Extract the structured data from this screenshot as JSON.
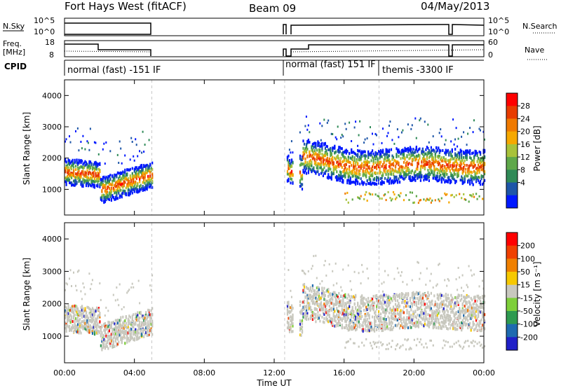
{
  "header": {
    "radar": "Fort Hays West (fitACF)",
    "beam": "Beam 09",
    "date": "04/May/2013"
  },
  "summary": {
    "nsky_label": "N.Sky",
    "nsky_ticks": [
      "10^5",
      "10^0"
    ],
    "nsearch_label": "N.Search",
    "nsearch_ticks": [
      "10^5",
      "10^0"
    ],
    "freq_label_1": "Freq.",
    "freq_label_2": "[MHz]",
    "freq_ticks": [
      "18",
      "8"
    ],
    "nave_label": "Nave",
    "nave_ticks": [
      "60",
      "0"
    ],
    "cpid_label": "CPID",
    "cpid_modes": [
      "normal (fast) -151 IF",
      "normal (fast) 151 IF",
      "themis -3300 IF"
    ]
  },
  "chart_data": [
    {
      "type": "heatmap",
      "name": "power",
      "ylabel": "Slant Range [km]",
      "xlabel": "Time UT",
      "y_ticks": [
        "4000",
        "3000",
        "2000",
        "1000"
      ],
      "colorbar_label": "Power [dB]",
      "colorbar_ticks": [
        "28",
        "24",
        "20",
        "16",
        "12",
        "8",
        "4"
      ],
      "colorbar_colors": [
        "#0018ff",
        "#1e56a8",
        "#2f8a57",
        "#5fa84a",
        "#a8c23a",
        "#f6a800",
        "#f07a00",
        "#e83c00",
        "#ff0000"
      ]
    },
    {
      "type": "heatmap",
      "name": "velocity",
      "ylabel": "Slant Range [km]",
      "xlabel": "Time UT",
      "y_ticks": [
        "4000",
        "3000",
        "2000",
        "1000"
      ],
      "colorbar_label": "Velocity [m s⁻¹]",
      "colorbar_ticks": [
        "200",
        "100",
        "50",
        "15",
        "-15",
        "-50",
        "-100",
        "-200"
      ],
      "colorbar_colors": [
        "#2020c8",
        "#1e6ab0",
        "#2e9a50",
        "#7ecf3a",
        "#c8c8be",
        "#f6c800",
        "#f08000",
        "#f04000",
        "#ff0000"
      ]
    }
  ],
  "x_ticks": [
    "00:00",
    "04:00",
    "08:00",
    "12:00",
    "16:00",
    "20:00",
    "00:00"
  ]
}
